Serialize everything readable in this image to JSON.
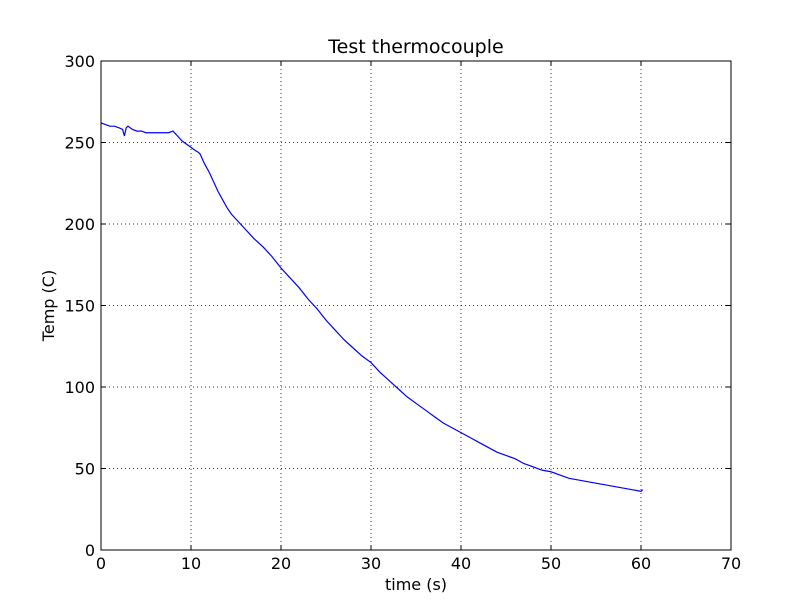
{
  "chart_data": {
    "type": "line",
    "title": "Test thermocouple",
    "xlabel": "time (s)",
    "ylabel": "Temp (C)",
    "xlim": [
      0,
      70
    ],
    "ylim": [
      0,
      300
    ],
    "xticks": [
      0,
      10,
      20,
      30,
      40,
      50,
      60,
      70
    ],
    "yticks": [
      0,
      50,
      100,
      150,
      200,
      250,
      300
    ],
    "xtick_labels": [
      "0",
      "10",
      "20",
      "30",
      "40",
      "50",
      "60",
      "70"
    ],
    "ytick_labels": [
      "0",
      "50",
      "100",
      "150",
      "200",
      "250",
      "300"
    ],
    "grid": true,
    "line_color": "#0000ff",
    "series": [
      {
        "x": [
          0,
          0.5,
          1,
          1.5,
          2,
          2.4,
          2.6,
          2.8,
          3,
          3.5,
          4,
          4.5,
          5,
          5.5,
          6,
          6.5,
          7,
          7.5,
          8,
          8.5,
          9,
          9.5,
          10,
          10.5,
          10.8,
          11,
          11.5,
          12,
          12.5,
          13,
          13.5,
          14,
          14.5,
          15,
          16,
          17,
          18,
          19,
          20,
          21,
          22,
          23,
          24,
          25,
          26,
          27,
          28,
          29,
          30,
          31,
          32,
          33,
          34,
          35,
          36,
          37,
          38,
          39,
          40,
          41,
          42,
          43,
          44,
          45,
          46,
          47,
          48,
          49,
          50,
          51,
          52,
          53,
          54,
          55,
          56,
          57,
          58,
          59,
          60,
          60.2
        ],
        "y": [
          262,
          261,
          260,
          260,
          259,
          258,
          254,
          259,
          260,
          258,
          257,
          257,
          256,
          256,
          256,
          256,
          256,
          256,
          257,
          254,
          251,
          249,
          247,
          245,
          244,
          243,
          237,
          232,
          226,
          220,
          215,
          210,
          206,
          203,
          197,
          191,
          186,
          180,
          173,
          167,
          161,
          154,
          148,
          141,
          135,
          129,
          124,
          119,
          115,
          109,
          104,
          99,
          94,
          90,
          86,
          82,
          78,
          75,
          72,
          69,
          66,
          63,
          60,
          58,
          56,
          53,
          51,
          49,
          48,
          46,
          44,
          43,
          42,
          41,
          40,
          39,
          38,
          37,
          36,
          37
        ]
      }
    ]
  }
}
